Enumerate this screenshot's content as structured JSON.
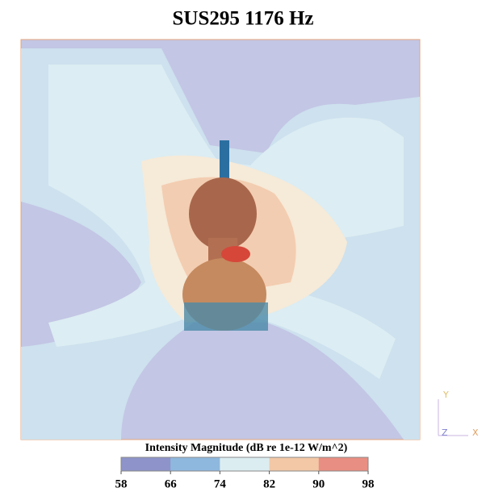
{
  "title": "SUS295 1176 Hz",
  "colorbar": {
    "label": "Intensity Magnitude (dB re 1e-12 W/m^2)",
    "lim": [
      58,
      98
    ],
    "ticks": [
      58,
      66,
      74,
      82,
      90,
      98
    ],
    "colors": [
      "#8e94c9",
      "#8fb8de",
      "#dcedf1",
      "#f2c8a7",
      "#e98e82"
    ]
  },
  "triad": {
    "y": "Y",
    "z": "Z",
    "x": "X"
  }
}
